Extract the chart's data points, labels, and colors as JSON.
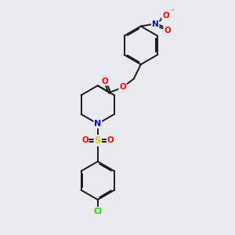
{
  "bg_color": "#eaeaf0",
  "bond_color": "#1a1a1a",
  "bond_width": 1.4,
  "atom_colors": {
    "O": "#ff0000",
    "N_blue": "#0000cc",
    "S": "#cccc00",
    "Cl": "#33cc00",
    "C": "#1a1a1a"
  },
  "figsize": [
    3.0,
    3.0
  ],
  "dpi": 100
}
